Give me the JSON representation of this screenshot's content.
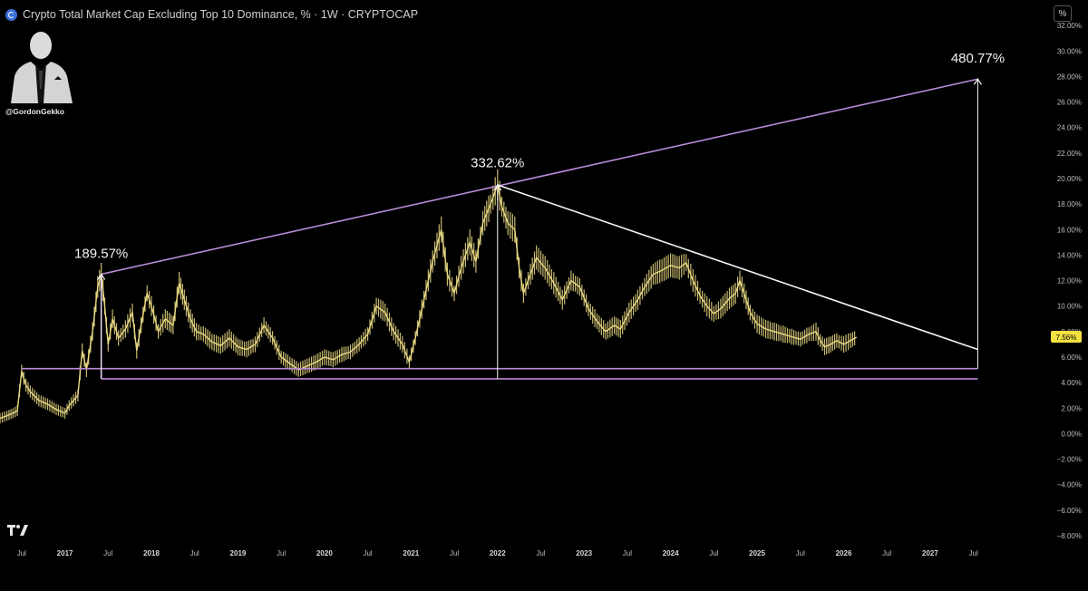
{
  "header": {
    "title": "Crypto Total Market Cap Excluding Top 10 Dominance, % · 1W · CRYPTOCAP",
    "percent_toggle": "%"
  },
  "author": {
    "handle": "@GordonGekko"
  },
  "colors": {
    "background": "#000000",
    "candles": "#e9d983",
    "trendline_purple": "#b98ad6",
    "trendline_white": "#f5f5f5",
    "price_label_bg": "#f3e23f"
  },
  "chart_data": {
    "type": "line",
    "title": "Crypto Total Market Cap Excluding Top 10 Dominance, %",
    "interval": "1W",
    "unit": "%",
    "ylim": [
      -8.5,
      34
    ],
    "y_ticks": [
      32,
      30,
      28,
      26,
      24,
      22,
      20,
      18,
      16,
      14,
      12,
      10,
      8,
      6,
      4,
      2,
      0,
      -2,
      -4,
      -6,
      -8
    ],
    "y_tick_labels": [
      "32.00%",
      "30.00%",
      "28.00%",
      "26.00%",
      "24.00%",
      "22.00%",
      "20.00%",
      "18.00%",
      "16.00%",
      "14.00%",
      "12.00%",
      "10.00%",
      "8.00%",
      "6.00%",
      "4.00%",
      "2.00%",
      "0.00%",
      "−2.00%",
      "−4.00%",
      "−6.00%",
      "−8.00%"
    ],
    "x_range": [
      2016.25,
      2028.3
    ],
    "x_ticks": [
      {
        "t": 2016.5,
        "label": "Jul",
        "year": false
      },
      {
        "t": 2017.0,
        "label": "2017",
        "year": true
      },
      {
        "t": 2017.5,
        "label": "Jul",
        "year": false
      },
      {
        "t": 2018.0,
        "label": "2018",
        "year": true
      },
      {
        "t": 2018.5,
        "label": "Jul",
        "year": false
      },
      {
        "t": 2019.0,
        "label": "2019",
        "year": true
      },
      {
        "t": 2019.5,
        "label": "Jul",
        "year": false
      },
      {
        "t": 2020.0,
        "label": "2020",
        "year": true
      },
      {
        "t": 2020.5,
        "label": "Jul",
        "year": false
      },
      {
        "t": 2021.0,
        "label": "2021",
        "year": true
      },
      {
        "t": 2021.5,
        "label": "Jul",
        "year": false
      },
      {
        "t": 2022.0,
        "label": "2022",
        "year": true
      },
      {
        "t": 2022.5,
        "label": "Jul",
        "year": false
      },
      {
        "t": 2023.0,
        "label": "2023",
        "year": true
      },
      {
        "t": 2023.5,
        "label": "Jul",
        "year": false
      },
      {
        "t": 2024.0,
        "label": "2024",
        "year": true
      },
      {
        "t": 2024.5,
        "label": "Jul",
        "year": false
      },
      {
        "t": 2025.0,
        "label": "2025",
        "year": true
      },
      {
        "t": 2025.5,
        "label": "Jul",
        "year": false
      },
      {
        "t": 2026.0,
        "label": "2026",
        "year": true
      },
      {
        "t": 2026.5,
        "label": "Jul",
        "year": false
      },
      {
        "t": 2027.0,
        "label": "2027",
        "year": true
      },
      {
        "t": 2027.5,
        "label": "Jul",
        "year": false
      }
    ],
    "series": [
      {
        "values": [
          [
            2016.25,
            1.2
          ],
          [
            2016.33,
            1.4
          ],
          [
            2016.4,
            1.6
          ],
          [
            2016.45,
            1.8
          ],
          [
            2016.5,
            4.9
          ],
          [
            2016.55,
            3.8
          ],
          [
            2016.6,
            3.3
          ],
          [
            2016.7,
            2.6
          ],
          [
            2016.8,
            2.3
          ],
          [
            2016.9,
            1.9
          ],
          [
            2017.0,
            1.6
          ],
          [
            2017.05,
            2.2
          ],
          [
            2017.15,
            3.0
          ],
          [
            2017.2,
            6.5
          ],
          [
            2017.25,
            5.0
          ],
          [
            2017.32,
            8.0
          ],
          [
            2017.38,
            11.5
          ],
          [
            2017.42,
            12.5
          ],
          [
            2017.46,
            10.0
          ],
          [
            2017.5,
            7.0
          ],
          [
            2017.55,
            9.0
          ],
          [
            2017.62,
            7.5
          ],
          [
            2017.7,
            8.2
          ],
          [
            2017.78,
            9.5
          ],
          [
            2017.83,
            6.5
          ],
          [
            2017.88,
            8.5
          ],
          [
            2017.95,
            11.0
          ],
          [
            2018.0,
            10.0
          ],
          [
            2018.08,
            8.0
          ],
          [
            2018.16,
            9.0
          ],
          [
            2018.25,
            8.5
          ],
          [
            2018.32,
            11.8
          ],
          [
            2018.38,
            10.5
          ],
          [
            2018.45,
            9.0
          ],
          [
            2018.52,
            8.0
          ],
          [
            2018.6,
            7.8
          ],
          [
            2018.7,
            7.2
          ],
          [
            2018.8,
            6.9
          ],
          [
            2018.9,
            7.5
          ],
          [
            2019.0,
            6.8
          ],
          [
            2019.1,
            6.6
          ],
          [
            2019.2,
            7.0
          ],
          [
            2019.3,
            8.5
          ],
          [
            2019.4,
            7.5
          ],
          [
            2019.5,
            6.0
          ],
          [
            2019.6,
            5.5
          ],
          [
            2019.7,
            5.0
          ],
          [
            2019.8,
            5.3
          ],
          [
            2019.9,
            5.6
          ],
          [
            2020.0,
            6.0
          ],
          [
            2020.1,
            5.8
          ],
          [
            2020.2,
            6.2
          ],
          [
            2020.3,
            6.4
          ],
          [
            2020.4,
            7.0
          ],
          [
            2020.5,
            7.8
          ],
          [
            2020.6,
            10.0
          ],
          [
            2020.7,
            9.5
          ],
          [
            2020.8,
            8.0
          ],
          [
            2020.9,
            7.0
          ],
          [
            2020.98,
            5.6
          ],
          [
            2021.05,
            7.5
          ],
          [
            2021.15,
            10.5
          ],
          [
            2021.25,
            13.5
          ],
          [
            2021.35,
            16.0
          ],
          [
            2021.42,
            12.5
          ],
          [
            2021.5,
            11.0
          ],
          [
            2021.58,
            13.0
          ],
          [
            2021.68,
            15.0
          ],
          [
            2021.75,
            13.5
          ],
          [
            2021.83,
            16.5
          ],
          [
            2021.92,
            18.0
          ],
          [
            2022.0,
            19.5
          ],
          [
            2022.05,
            17.8
          ],
          [
            2022.12,
            16.5
          ],
          [
            2022.2,
            16.0
          ],
          [
            2022.25,
            13.0
          ],
          [
            2022.3,
            11.0
          ],
          [
            2022.38,
            12.5
          ],
          [
            2022.45,
            13.8
          ],
          [
            2022.55,
            13.0
          ],
          [
            2022.65,
            11.8
          ],
          [
            2022.75,
            10.5
          ],
          [
            2022.85,
            12.0
          ],
          [
            2022.95,
            11.5
          ],
          [
            2023.05,
            9.8
          ],
          [
            2023.15,
            8.8
          ],
          [
            2023.25,
            8.0
          ],
          [
            2023.35,
            8.5
          ],
          [
            2023.42,
            8.2
          ],
          [
            2023.52,
            9.5
          ],
          [
            2023.62,
            10.5
          ],
          [
            2023.7,
            11.5
          ],
          [
            2023.8,
            12.5
          ],
          [
            2023.9,
            12.8
          ],
          [
            2024.0,
            13.2
          ],
          [
            2024.1,
            13.0
          ],
          [
            2024.18,
            13.4
          ],
          [
            2024.26,
            12.0
          ],
          [
            2024.34,
            10.8
          ],
          [
            2024.42,
            10.0
          ],
          [
            2024.5,
            9.4
          ],
          [
            2024.58,
            9.8
          ],
          [
            2024.68,
            10.6
          ],
          [
            2024.75,
            11.0
          ],
          [
            2024.8,
            12.0
          ],
          [
            2024.85,
            11.0
          ],
          [
            2024.92,
            9.5
          ],
          [
            2025.0,
            8.6
          ],
          [
            2025.1,
            8.2
          ],
          [
            2025.2,
            8.0
          ],
          [
            2025.3,
            7.8
          ],
          [
            2025.4,
            7.6
          ],
          [
            2025.5,
            7.4
          ],
          [
            2025.6,
            7.8
          ],
          [
            2025.68,
            8.0
          ],
          [
            2025.73,
            7.3
          ],
          [
            2025.78,
            6.8
          ],
          [
            2025.85,
            7.0
          ],
          [
            2025.92,
            7.3
          ],
          [
            2026.0,
            7.0
          ],
          [
            2026.08,
            7.3
          ],
          [
            2026.15,
            7.56
          ]
        ]
      }
    ],
    "last_price_label": "7.56%",
    "last_price": 7.56,
    "annotations": [
      {
        "text": "189.57%",
        "t": 2017.42,
        "y": 12.5
      },
      {
        "text": "332.62%",
        "t": 2022.0,
        "y": 19.6
      },
      {
        "text": "480.77%",
        "t": 2027.55,
        "y": 27.8
      }
    ],
    "lines": [
      {
        "kind": "upper-trend",
        "from": [
          2017.42,
          12.5
        ],
        "to": [
          2027.55,
          27.8
        ],
        "color": "purple"
      },
      {
        "kind": "support-upper",
        "from": [
          2016.5,
          5.1
        ],
        "to": [
          2027.55,
          5.1
        ],
        "color": "purple"
      },
      {
        "kind": "support-lower",
        "from": [
          2017.42,
          4.3
        ],
        "to": [
          2027.55,
          4.3
        ],
        "color": "purple"
      },
      {
        "kind": "support-left",
        "from": [
          2017.42,
          4.3
        ],
        "to": [
          2017.42,
          12.5
        ],
        "color": "purple"
      },
      {
        "kind": "descending-trend",
        "from": [
          2022.0,
          19.5
        ],
        "to": [
          2027.55,
          6.6
        ],
        "color": "white"
      },
      {
        "kind": "measure-1",
        "from": [
          2017.42,
          4.3
        ],
        "to": [
          2017.42,
          12.5
        ],
        "color": "white",
        "arrow": true
      },
      {
        "kind": "measure-2",
        "from": [
          2022.0,
          4.3
        ],
        "to": [
          2022.0,
          19.5
        ],
        "color": "white",
        "arrow": true
      },
      {
        "kind": "measure-3",
        "from": [
          2027.55,
          5.1
        ],
        "to": [
          2027.55,
          27.8
        ],
        "color": "white",
        "arrow": true
      }
    ],
    "grid": false,
    "legend": "none"
  }
}
